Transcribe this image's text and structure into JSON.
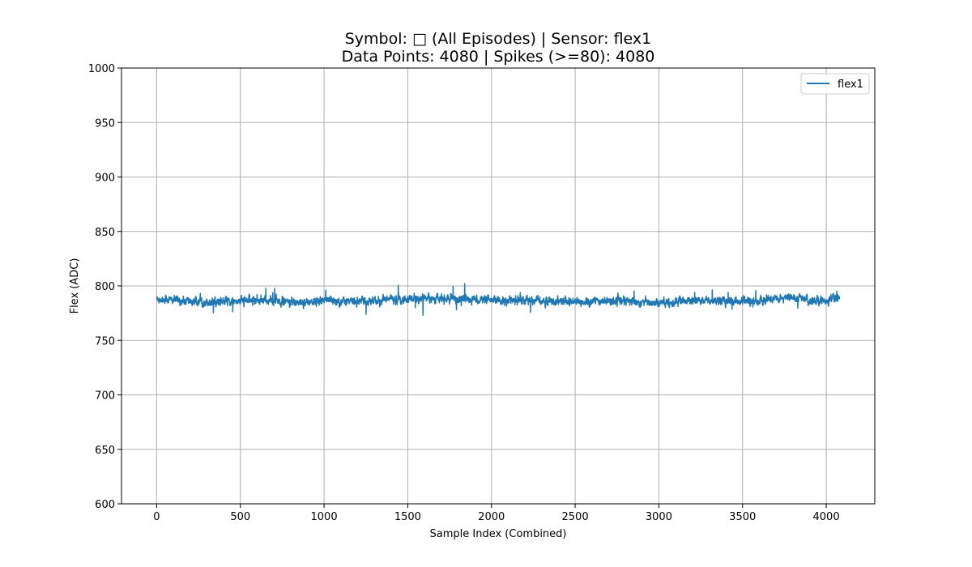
{
  "chart_data": {
    "type": "line",
    "title_line1": "Symbol: □ (All Episodes) | Sensor: flex1",
    "title_line2": "Data Points: 4080 | Spikes (>=80): 4080",
    "xlabel": "Sample Index (Combined)",
    "ylabel": "Flex (ADC)",
    "xlim": [
      -210,
      4290
    ],
    "ylim": [
      600,
      1000
    ],
    "xticks": [
      0,
      500,
      1000,
      1500,
      2000,
      2500,
      3000,
      3500,
      4000
    ],
    "yticks": [
      600,
      650,
      700,
      750,
      800,
      850,
      900,
      950,
      1000
    ],
    "grid": true,
    "legend_position": "top-right",
    "series": [
      {
        "name": "flex1",
        "color": "#1f77b4",
        "x_range": [
          0,
          4079
        ],
        "y_profile": [
          [
            0,
            788
          ],
          [
            100,
            787
          ],
          [
            200,
            786
          ],
          [
            300,
            785
          ],
          [
            400,
            786
          ],
          [
            500,
            786
          ],
          [
            600,
            787
          ],
          [
            700,
            786
          ],
          [
            800,
            785
          ],
          [
            900,
            785
          ],
          [
            1000,
            787
          ],
          [
            1100,
            786
          ],
          [
            1200,
            786
          ],
          [
            1300,
            786
          ],
          [
            1400,
            788
          ],
          [
            1500,
            788
          ],
          [
            1600,
            789
          ],
          [
            1700,
            788
          ],
          [
            1800,
            788
          ],
          [
            1900,
            788
          ],
          [
            2000,
            786
          ],
          [
            2100,
            787
          ],
          [
            2200,
            787
          ],
          [
            2300,
            786
          ],
          [
            2400,
            786
          ],
          [
            2500,
            785
          ],
          [
            2600,
            786
          ],
          [
            2700,
            786
          ],
          [
            2800,
            786
          ],
          [
            2900,
            785
          ],
          [
            3000,
            784
          ],
          [
            3100,
            785
          ],
          [
            3200,
            786
          ],
          [
            3300,
            787
          ],
          [
            3400,
            786
          ],
          [
            3500,
            786
          ],
          [
            3600,
            786
          ],
          [
            3700,
            789
          ],
          [
            3800,
            789
          ],
          [
            3900,
            787
          ],
          [
            4000,
            787
          ],
          [
            4079,
            789
          ]
        ],
        "y_min": 773,
        "y_max": 805
      }
    ]
  }
}
